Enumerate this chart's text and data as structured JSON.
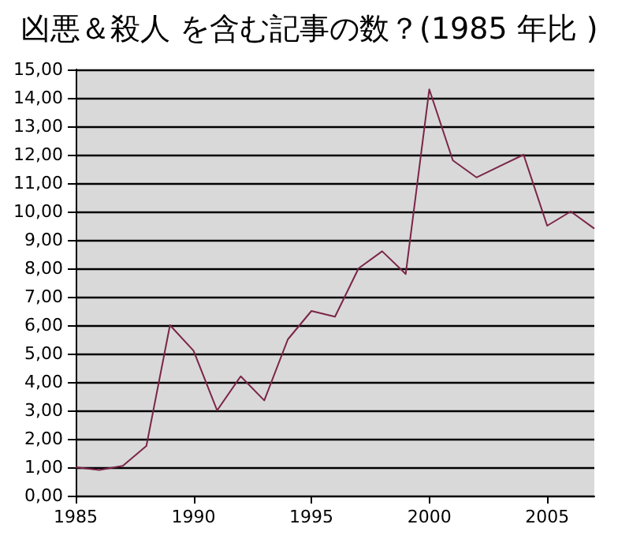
{
  "chart_data": {
    "type": "line",
    "title": "凶悪＆殺人 を含む記事の数？(1985 年比 )",
    "x": [
      1985,
      1986,
      1987,
      1988,
      1989,
      1990,
      1991,
      1992,
      1993,
      1994,
      1995,
      1996,
      1997,
      1998,
      1999,
      2000,
      2001,
      2002,
      2003,
      2004,
      2005,
      2006,
      2007
    ],
    "series": [
      {
        "color": "#7b2548",
        "values": [
          1.0,
          0.9,
          1.05,
          1.75,
          6.0,
          5.1,
          3.0,
          4.2,
          3.35,
          5.5,
          6.5,
          6.3,
          8.0,
          8.6,
          7.8,
          14.3,
          11.8,
          11.2,
          11.6,
          12.0,
          9.5,
          10.0,
          9.4
        ]
      }
    ],
    "xlim": [
      1985,
      2007
    ],
    "xticks": [
      1985,
      1990,
      1995,
      2000,
      2005
    ],
    "ylim": [
      0,
      15
    ],
    "yticks": [
      {
        "value": 0,
        "label": "0,00"
      },
      {
        "value": 1,
        "label": "1,00"
      },
      {
        "value": 2,
        "label": "2,00"
      },
      {
        "value": 3,
        "label": "3,00"
      },
      {
        "value": 4,
        "label": "4,00"
      },
      {
        "value": 5,
        "label": "5,00"
      },
      {
        "value": 6,
        "label": "6,00"
      },
      {
        "value": 7,
        "label": "7,00"
      },
      {
        "value": 8,
        "label": "8,00"
      },
      {
        "value": 9,
        "label": "9,00"
      },
      {
        "value": 10,
        "label": "10,00"
      },
      {
        "value": 11,
        "label": "11,00"
      },
      {
        "value": 12,
        "label": "12,00"
      },
      {
        "value": 13,
        "label": "13,00"
      },
      {
        "value": 14,
        "label": "14,00"
      },
      {
        "value": 15,
        "label": "15,00"
      }
    ],
    "grid": "y",
    "marker": "none",
    "line_style": "solid"
  }
}
